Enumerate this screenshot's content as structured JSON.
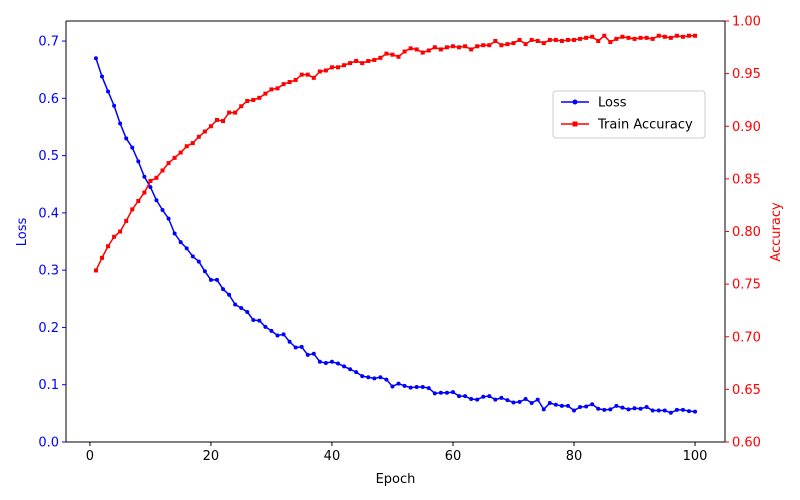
{
  "chart_data": {
    "type": "line",
    "title": "",
    "xlabel": "Epoch",
    "ylabel_left": "Loss",
    "ylabel_right": "Accuracy",
    "xlim": [
      -3.95,
      104.95
    ],
    "ylim_left": [
      0.0,
      0.735
    ],
    "ylim_right": [
      0.6,
      1.0
    ],
    "x_ticks": [
      0,
      20,
      40,
      60,
      80,
      100
    ],
    "y_ticks_left": [
      0.0,
      0.1,
      0.2,
      0.3,
      0.4,
      0.5,
      0.6,
      0.7
    ],
    "y_ticks_right": [
      0.6,
      0.65,
      0.7,
      0.75,
      0.8,
      0.85,
      0.9,
      0.95,
      1.0
    ],
    "legend_position": "upper-right",
    "colors": {
      "left_axis": "#0000ff",
      "right_axis": "#ff0000"
    },
    "series": [
      {
        "name": "Loss",
        "axis": "left",
        "color": "#0000ff",
        "marker": "circle",
        "x_start": 1,
        "values": [
          0.67,
          0.638,
          0.612,
          0.587,
          0.556,
          0.53,
          0.514,
          0.49,
          0.463,
          0.445,
          0.422,
          0.405,
          0.39,
          0.364,
          0.349,
          0.338,
          0.324,
          0.315,
          0.298,
          0.283,
          0.283,
          0.267,
          0.257,
          0.24,
          0.234,
          0.227,
          0.213,
          0.212,
          0.201,
          0.194,
          0.186,
          0.188,
          0.175,
          0.165,
          0.166,
          0.152,
          0.154,
          0.14,
          0.138,
          0.14,
          0.137,
          0.132,
          0.127,
          0.122,
          0.115,
          0.113,
          0.111,
          0.113,
          0.109,
          0.097,
          0.102,
          0.098,
          0.095,
          0.096,
          0.096,
          0.094,
          0.085,
          0.086,
          0.086,
          0.087,
          0.08,
          0.08,
          0.075,
          0.074,
          0.079,
          0.08,
          0.074,
          0.077,
          0.073,
          0.069,
          0.07,
          0.075,
          0.068,
          0.074,
          0.057,
          0.068,
          0.065,
          0.063,
          0.063,
          0.055,
          0.061,
          0.062,
          0.066,
          0.058,
          0.056,
          0.057,
          0.063,
          0.06,
          0.057,
          0.059,
          0.058,
          0.061,
          0.055,
          0.055,
          0.055,
          0.051,
          0.056,
          0.056,
          0.054,
          0.053
        ]
      },
      {
        "name": "Train Accuracy",
        "axis": "right",
        "color": "#ff0000",
        "marker": "square",
        "x_start": 1,
        "values": [
          0.763,
          0.775,
          0.786,
          0.795,
          0.8,
          0.81,
          0.821,
          0.829,
          0.837,
          0.848,
          0.851,
          0.858,
          0.865,
          0.87,
          0.875,
          0.881,
          0.884,
          0.89,
          0.895,
          0.9,
          0.906,
          0.905,
          0.913,
          0.913,
          0.919,
          0.924,
          0.925,
          0.927,
          0.931,
          0.935,
          0.936,
          0.94,
          0.942,
          0.944,
          0.949,
          0.949,
          0.946,
          0.952,
          0.953,
          0.956,
          0.956,
          0.958,
          0.96,
          0.962,
          0.96,
          0.962,
          0.963,
          0.965,
          0.969,
          0.968,
          0.966,
          0.971,
          0.974,
          0.973,
          0.97,
          0.972,
          0.975,
          0.973,
          0.975,
          0.976,
          0.975,
          0.976,
          0.973,
          0.976,
          0.977,
          0.977,
          0.981,
          0.977,
          0.978,
          0.979,
          0.982,
          0.978,
          0.982,
          0.981,
          0.979,
          0.982,
          0.982,
          0.981,
          0.982,
          0.982,
          0.983,
          0.984,
          0.985,
          0.981,
          0.986,
          0.98,
          0.983,
          0.985,
          0.984,
          0.983,
          0.984,
          0.984,
          0.983,
          0.986,
          0.985,
          0.984,
          0.986,
          0.985,
          0.986,
          0.986
        ]
      }
    ]
  }
}
